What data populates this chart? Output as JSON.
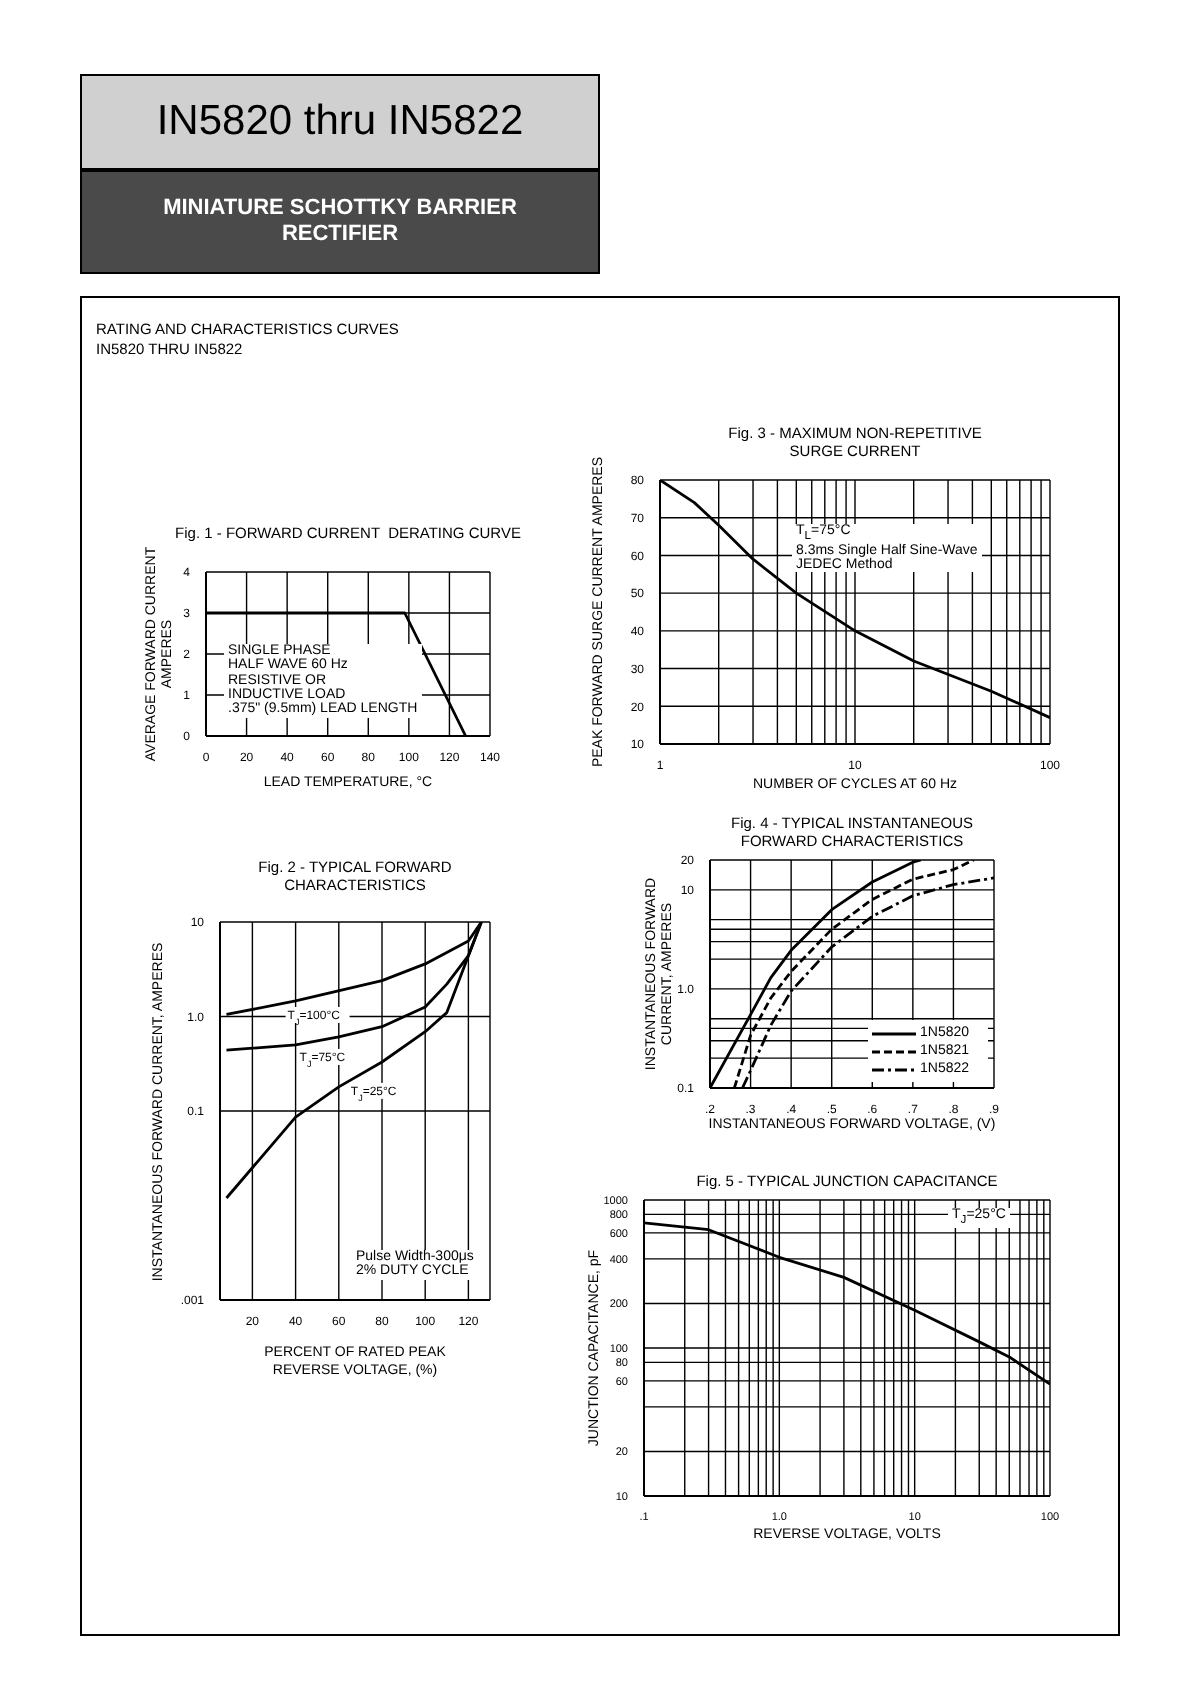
{
  "chart_data": [
    {
      "type": "other",
      "title": "IN5820 thru IN5822",
      "subtitle": "MINIATURE SCHOTTKY BARRIER\nRECTIFIER",
      "annotations": [
        "RATING AND CHARACTERISTICS CURVES\nIN5820 THRU IN5822"
      ]
    },
    {
      "type": "line",
      "title": "Fig. 1 - FORWARD CURRENT  DERATING CURVE",
      "xlabel": "LEAD TEMPERATURE, °C",
      "ylabel": "AVERAGE FORWARD CURRENT\nAMPERES",
      "x": [
        0,
        98,
        128
      ],
      "values": [
        3,
        3,
        0
      ],
      "color": "#000000",
      "xlim": [
        0,
        140
      ],
      "ylim": [
        0,
        4
      ],
      "xticks": [
        0,
        20,
        40,
        60,
        80,
        100,
        120,
        140
      ],
      "yticks": [
        0,
        1,
        2,
        3,
        4
      ],
      "grid": true,
      "marker": "none",
      "legend": false,
      "annotations": [
        "SINGLE PHASE\nHALF WAVE 60 Hz\nRESISTIVE OR\nINDUCTIVE LOAD\n.375\" (9.5mm) LEAD LENGTH"
      ]
    },
    {
      "type": "line",
      "title": "Fig. 2 - TYPICAL FORWARD\nCHARACTERISTICS",
      "xlabel": "PERCENT OF RATED PEAK\nREVERSE VOLTAGE, (%)",
      "ylabel": "INSTANTANEOUS FORWARD CURRENT, AMPERES",
      "log": "y",
      "xlim": [
        5,
        130
      ],
      "ylim": [
        0.001,
        10
      ],
      "xticks": [
        20,
        40,
        60,
        80,
        100,
        120
      ],
      "yticks": [
        {
          "value": 0.001,
          "label": ".001"
        },
        {
          "value": 0.1,
          "label": "0.1"
        },
        {
          "value": 1,
          "label": "1.0"
        },
        10
      ],
      "grid": true,
      "marker": "none",
      "legend": false,
      "series": [
        {
          "name": "T$_{J}$=100°C",
          "color": "#000000",
          "x": [
            8,
            40,
            80,
            100,
            120,
            126
          ],
          "values": [
            1.05,
            1.46,
            2.4,
            3.6,
            6.3,
            10
          ]
        },
        {
          "name": "T$_{J}$=75°C",
          "color": "#000000",
          "x": [
            8,
            40,
            60,
            80,
            100,
            110,
            120,
            126
          ],
          "values": [
            0.44,
            0.5,
            0.61,
            0.78,
            1.26,
            2.2,
            4.4,
            10
          ]
        },
        {
          "name": "T$_{J}$=25°C",
          "color": "#000000",
          "x": [
            8,
            40,
            60,
            80,
            100,
            110,
            120,
            126
          ],
          "values": [
            0.012,
            0.086,
            0.18,
            0.33,
            0.69,
            1.1,
            4.4,
            10
          ]
        }
      ],
      "annotations": [
        "Pulse Width-300μs\n2% DUTY CYCLE"
      ]
    },
    {
      "type": "line",
      "title": "Fig. 3 - MAXIMUM NON-REPETITIVE\nSURGE CURRENT",
      "xlabel": "NUMBER OF CYCLES AT 60 Hz",
      "ylabel": "PEAK FORWARD SURGE CURRENT AMPERES",
      "log": "x",
      "x": [
        1,
        1.5,
        2,
        3,
        5,
        10,
        20,
        50,
        100
      ],
      "values": [
        80,
        74,
        68,
        59,
        50,
        40,
        32,
        24,
        17
      ],
      "color": "#000000",
      "xlim": [
        1,
        100
      ],
      "ylim": [
        10,
        80
      ],
      "xticks": [
        1,
        {
          "value": 2,
          "label": null
        },
        {
          "value": 3,
          "label": null
        },
        {
          "value": 4,
          "label": null
        },
        {
          "value": 5,
          "label": null
        },
        {
          "value": 6,
          "label": null
        },
        {
          "value": 7,
          "label": null
        },
        {
          "value": 8,
          "label": null
        },
        {
          "value": 9,
          "label": null
        },
        10,
        {
          "value": 20,
          "label": null
        },
        {
          "value": 30,
          "label": null
        },
        {
          "value": 40,
          "label": null
        },
        {
          "value": 50,
          "label": null
        },
        {
          "value": 60,
          "label": null
        },
        {
          "value": 70,
          "label": null
        },
        {
          "value": 80,
          "label": null
        },
        {
          "value": 90,
          "label": null
        },
        100
      ],
      "yticks": [
        10,
        20,
        30,
        40,
        50,
        60,
        70,
        80
      ],
      "grid": true,
      "marker": "none",
      "legend": false,
      "annotations": [
        "T$_{L}$=75°C\n8.3ms Single Half Sine-Wave\nJEDEC Method"
      ]
    },
    {
      "type": "line",
      "title": "Fig. 4 - TYPICAL INSTANTANEOUS\nFORWARD CHARACTERISTICS",
      "xlabel": "INSTANTANEOUS FORWARD VOLTAGE, (V)",
      "ylabel": "INSTANTANEOUS FORWARD\nCURRENT, AMPERES",
      "log": "y",
      "xlim": [
        0.2,
        0.9
      ],
      "ylim": [
        0.1,
        20
      ],
      "xticks": [
        {
          "value": 0.2,
          "label": ".2"
        },
        {
          "value": 0.3,
          "label": ".3"
        },
        {
          "value": 0.4,
          "label": ".4"
        },
        {
          "value": 0.5,
          "label": ".5"
        },
        {
          "value": 0.6,
          "label": ".6"
        },
        {
          "value": 0.7,
          "label": ".7"
        },
        {
          "value": 0.8,
          "label": ".8"
        },
        {
          "value": 0.9,
          "label": ".9"
        }
      ],
      "yticks": [
        0.1,
        {
          "value": 0.2,
          "label": null
        },
        {
          "value": 0.3,
          "label": null
        },
        {
          "value": 0.4,
          "label": null
        },
        {
          "value": 0.5,
          "label": null
        },
        {
          "value": 1,
          "label": "1.0"
        },
        {
          "value": 2,
          "label": null
        },
        {
          "value": 3,
          "label": null
        },
        {
          "value": 4,
          "label": null
        },
        {
          "value": 5,
          "label": null
        },
        10,
        20
      ],
      "grid": true,
      "marker": "none",
      "legend": "bottom right",
      "series": [
        {
          "name": "1N5820",
          "color": "#000000",
          "line_style": "solid",
          "x": [
            0.2,
            0.3,
            0.35,
            0.4,
            0.5,
            0.6,
            0.7,
            0.72
          ],
          "values": [
            0.1,
            0.55,
            1.3,
            2.45,
            6.3,
            12,
            19,
            20
          ]
        },
        {
          "name": "1N5821",
          "color": "#000000",
          "line_style": "dashed",
          "x": [
            0.26,
            0.3,
            0.35,
            0.4,
            0.5,
            0.6,
            0.7,
            0.8,
            0.85
          ],
          "values": [
            0.1,
            0.34,
            0.81,
            1.5,
            4,
            8,
            12.8,
            16,
            20
          ]
        },
        {
          "name": "1N5822",
          "color": "#000000",
          "line_style": "dotted",
          "x": [
            0.28,
            0.3,
            0.35,
            0.4,
            0.5,
            0.6,
            0.7,
            0.8,
            0.9
          ],
          "values": [
            0.1,
            0.15,
            0.43,
            0.95,
            2.65,
            5.4,
            8.7,
            11.3,
            13.2
          ]
        }
      ]
    },
    {
      "type": "line",
      "title": "Fig. 5 - TYPICAL JUNCTION CAPACITANCE",
      "xlabel": "REVERSE VOLTAGE, VOLTS",
      "ylabel": "JUNCTION CAPACITANCE, pF",
      "log": "xy",
      "x": [
        0.1,
        0.3,
        1,
        3,
        10,
        30,
        50,
        100
      ],
      "values": [
        700,
        630,
        410,
        300,
        180,
        110,
        87,
        57
      ],
      "color": "#000000",
      "xlim": [
        0.1,
        100
      ],
      "ylim": [
        10,
        1000
      ],
      "xticks": [
        {
          "value": 0.1,
          "label": ".1"
        },
        {
          "value": 0.2,
          "label": null
        },
        {
          "value": 0.3,
          "label": null
        },
        {
          "value": 0.4,
          "label": null
        },
        {
          "value": 0.5,
          "label": null
        },
        {
          "value": 0.6,
          "label": null
        },
        {
          "value": 0.7,
          "label": null
        },
        {
          "value": 0.8,
          "label": null
        },
        {
          "value": 0.9,
          "label": null
        },
        {
          "value": 1,
          "label": "1.0"
        },
        {
          "value": 2,
          "label": null
        },
        {
          "value": 3,
          "label": null
        },
        {
          "value": 4,
          "label": null
        },
        {
          "value": 5,
          "label": null
        },
        {
          "value": 6,
          "label": null
        },
        {
          "value": 7,
          "label": null
        },
        {
          "value": 8,
          "label": null
        },
        {
          "value": 9,
          "label": null
        },
        10,
        {
          "value": 20,
          "label": null
        },
        {
          "value": 30,
          "label": null
        },
        {
          "value": 40,
          "label": null
        },
        {
          "value": 50,
          "label": null
        },
        {
          "value": 60,
          "label": null
        },
        {
          "value": 70,
          "label": null
        },
        {
          "value": 80,
          "label": null
        },
        {
          "value": 90,
          "label": null
        },
        100
      ],
      "yticks": [
        10,
        20,
        {
          "value": 40,
          "label": null
        },
        60,
        80,
        100,
        200,
        400,
        600,
        800,
        1000
      ],
      "grid": true,
      "marker": "none",
      "legend": false,
      "annotations": [
        "T$_{J}$=25°C"
      ]
    }
  ]
}
